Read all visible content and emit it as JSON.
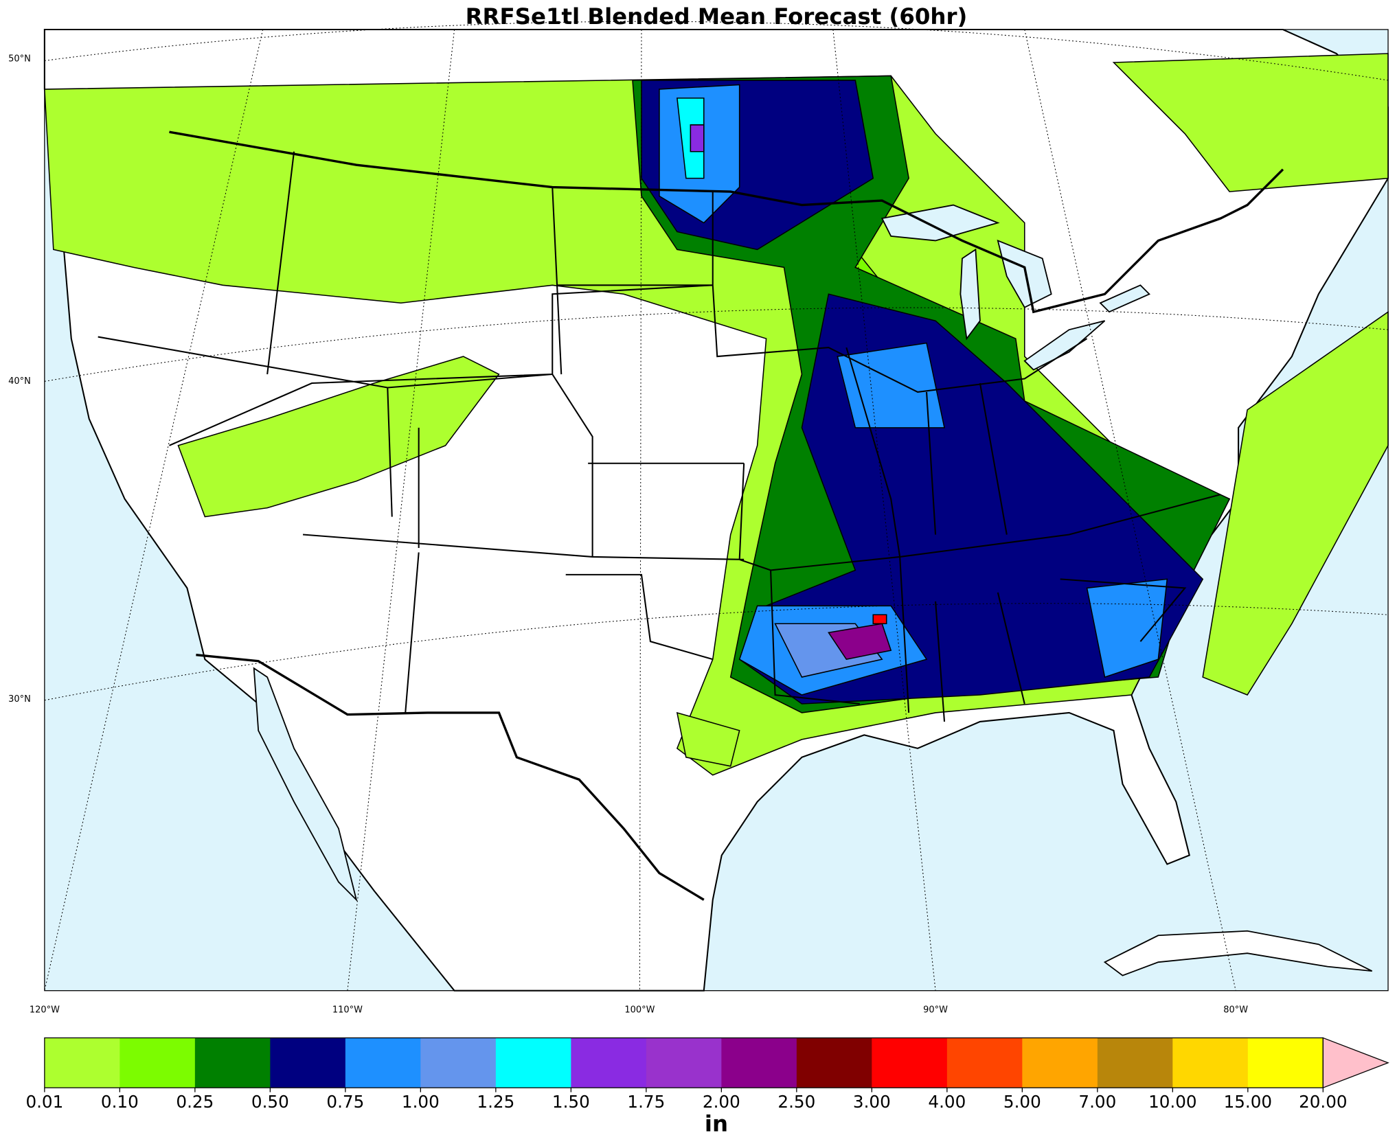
{
  "title": "RRFSe1tl Blended Mean Forecast (60hr)",
  "map": {
    "lat_labels": [
      "50°N",
      "40°N",
      "30°N"
    ],
    "lon_labels": [
      "120°W",
      "110°W",
      "100°W",
      "90°W",
      "80°W"
    ]
  },
  "colorbar": {
    "ticks": [
      0.01,
      {
        "value": 0.1,
        "label": "0.10"
      },
      0.25,
      {
        "value": 0.5,
        "label": "0.50"
      },
      0.75,
      {
        "value": 1,
        "label": "1.00"
      },
      1.25,
      {
        "value": 1.5,
        "label": "1.50"
      },
      1.75,
      {
        "value": 2,
        "label": "2.00"
      },
      {
        "value": 2.5,
        "label": "2.50"
      },
      {
        "value": 3,
        "label": "3.00"
      },
      {
        "value": 4,
        "label": "4.00"
      },
      {
        "value": 5,
        "label": "5.00"
      },
      {
        "value": 7,
        "label": "7.00"
      },
      {
        "value": 10,
        "label": "10.00"
      },
      {
        "value": 15,
        "label": "15.00"
      },
      {
        "value": 20,
        "label": "20.00"
      }
    ],
    "colors": [
      "#adff2f",
      "#7cfc00",
      "#008000",
      "#000080",
      "#1e90ff",
      "#6495ed",
      "#00ffff",
      "#8a2be2",
      "#9932cc",
      "#8b008b",
      "#800000",
      "#ff0000",
      "#ff4500",
      "#ffa500",
      "#b8860b",
      "#ffd700",
      "#ffff00"
    ],
    "extend_color": "#ffc0cb",
    "label": "in"
  }
}
